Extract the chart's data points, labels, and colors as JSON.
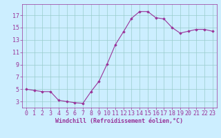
{
  "x": [
    0,
    1,
    2,
    3,
    4,
    5,
    6,
    7,
    8,
    9,
    10,
    11,
    12,
    13,
    14,
    15,
    16,
    17,
    18,
    19,
    20,
    21,
    22,
    23
  ],
  "y": [
    5.0,
    4.8,
    4.6,
    4.6,
    3.2,
    3.0,
    2.8,
    2.7,
    4.6,
    6.3,
    9.1,
    12.2,
    14.3,
    16.5,
    17.6,
    17.6,
    16.6,
    16.4,
    15.0,
    14.1,
    14.4,
    14.7,
    14.7,
    14.4
  ],
  "line_color": "#993399",
  "marker": "D",
  "marker_size": 1.8,
  "bg_color": "#cceeff",
  "grid_color": "#99cccc",
  "xlabel": "Windchill (Refroidissement éolien,°C)",
  "xlabel_color": "#993399",
  "tick_color": "#993399",
  "yticks": [
    3,
    5,
    7,
    9,
    11,
    13,
    15,
    17
  ],
  "xticks": [
    0,
    1,
    2,
    3,
    4,
    5,
    6,
    7,
    8,
    9,
    10,
    11,
    12,
    13,
    14,
    15,
    16,
    17,
    18,
    19,
    20,
    21,
    22,
    23
  ],
  "ylim": [
    2.0,
    18.8
  ],
  "xlim": [
    -0.5,
    23.5
  ],
  "tick_fontsize": 6.0,
  "xlabel_fontsize": 6.0
}
